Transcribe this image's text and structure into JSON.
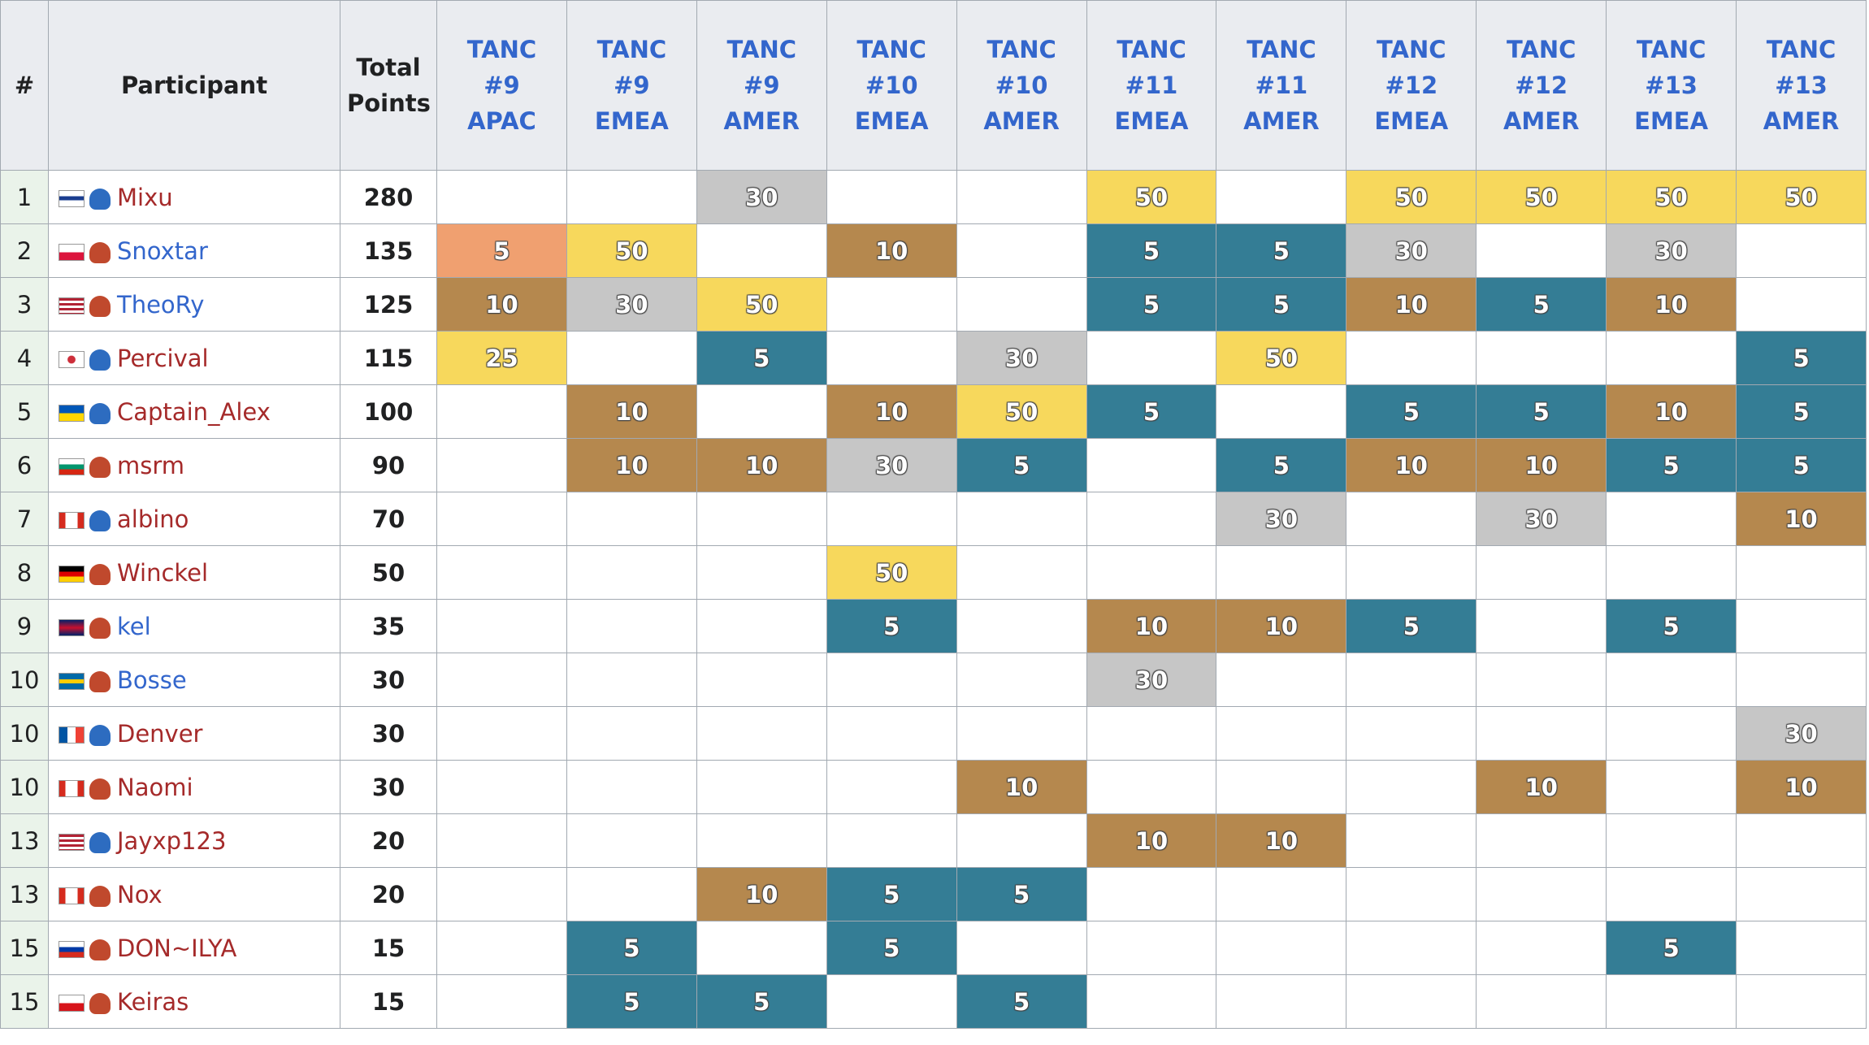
{
  "table": {
    "headers": [
      "#",
      "Participant",
      "Total Points"
    ],
    "events": [
      "TANC #9 APAC",
      "TANC #9 EMEA",
      "TANC #9 AMER",
      "TANC #10 EMEA",
      "TANC #10 AMER",
      "TANC #11 EMEA",
      "TANC #11 AMER",
      "TANC #12 EMEA",
      "TANC #12 AMER",
      "TANC #13 EMEA",
      "TANC #13 AMER"
    ],
    "rows": [
      {
        "rank": 1,
        "name": "Mixu",
        "name_color": "#a52a2a",
        "total": 280,
        "points": [
          null,
          null,
          30,
          null,
          null,
          50,
          null,
          50,
          50,
          50,
          50
        ],
        "colors": [
          null,
          null,
          "#c6c6c6",
          null,
          null,
          "#f7d85c",
          null,
          "#f7d85c",
          "#f7d85c",
          "#f7d85c",
          "#f7d85c"
        ]
      },
      {
        "rank": 2,
        "name": "Snoxtar",
        "name_color": "#3366cc",
        "total": 135,
        "points": [
          5,
          50,
          null,
          10,
          null,
          5,
          5,
          30,
          null,
          30,
          null
        ],
        "colors": [
          "#f0a070",
          "#f7d85c",
          null,
          "#b5884e",
          null,
          "#347d95",
          "#347d95",
          "#c6c6c6",
          null,
          "#c6c6c6",
          null
        ]
      },
      {
        "rank": 3,
        "name": "TheoRy",
        "name_color": "#3366cc",
        "total": 125,
        "points": [
          10,
          30,
          50,
          null,
          null,
          5,
          5,
          10,
          5,
          10,
          null
        ],
        "colors": [
          "#b5884e",
          "#c6c6c6",
          "#f7d85c",
          null,
          null,
          "#347d95",
          "#347d95",
          "#b5884e",
          "#347d95",
          "#b5884e",
          null
        ]
      },
      {
        "rank": 4,
        "name": "Percival",
        "name_color": "#a52a2a",
        "total": 115,
        "points": [
          25,
          null,
          5,
          null,
          30,
          null,
          50,
          null,
          null,
          null,
          5
        ],
        "colors": [
          "#f7d85c",
          null,
          "#347d95",
          null,
          "#c6c6c6",
          null,
          "#f7d85c",
          null,
          null,
          null,
          "#347d95"
        ]
      },
      {
        "rank": 5,
        "name": "Captain_Alex",
        "name_color": "#a52a2a",
        "total": 100,
        "points": [
          null,
          10,
          null,
          10,
          50,
          5,
          null,
          5,
          5,
          10,
          5
        ],
        "colors": [
          null,
          "#b5884e",
          null,
          "#b5884e",
          "#f7d85c",
          "#347d95",
          null,
          "#347d95",
          "#347d95",
          "#b5884e",
          "#347d95"
        ]
      },
      {
        "rank": 6,
        "name": "msrm",
        "name_color": "#a52a2a",
        "total": 90,
        "points": [
          null,
          10,
          10,
          30,
          5,
          null,
          5,
          10,
          10,
          5,
          5
        ],
        "colors": [
          null,
          "#b5884e",
          "#b5884e",
          "#c6c6c6",
          "#347d95",
          null,
          "#347d95",
          "#b5884e",
          "#b5884e",
          "#347d95",
          "#347d95"
        ]
      },
      {
        "rank": 7,
        "name": "albino",
        "name_color": "#a52a2a",
        "total": 70,
        "points": [
          null,
          null,
          null,
          null,
          null,
          null,
          30,
          null,
          30,
          null,
          10
        ],
        "colors": [
          null,
          null,
          null,
          null,
          null,
          null,
          "#c6c6c6",
          null,
          "#c6c6c6",
          null,
          "#b5884e"
        ]
      },
      {
        "rank": 8,
        "name": "Winckel",
        "name_color": "#a52a2a",
        "total": 50,
        "points": [
          null,
          null,
          null,
          50,
          null,
          null,
          null,
          null,
          null,
          null,
          null
        ],
        "colors": [
          null,
          null,
          null,
          "#f7d85c",
          null,
          null,
          null,
          null,
          null,
          null,
          null
        ]
      },
      {
        "rank": 9,
        "name": "kel",
        "name_color": "#3366cc",
        "total": 35,
        "points": [
          null,
          null,
          null,
          5,
          null,
          10,
          10,
          5,
          null,
          5,
          null
        ],
        "colors": [
          null,
          null,
          null,
          "#347d95",
          null,
          "#b5884e",
          "#b5884e",
          "#347d95",
          null,
          "#347d95",
          null
        ]
      },
      {
        "rank": 10,
        "name": "Bosse",
        "name_color": "#3366cc",
        "total": 30,
        "points": [
          null,
          null,
          null,
          null,
          null,
          30,
          null,
          null,
          null,
          null,
          null
        ],
        "colors": [
          null,
          null,
          null,
          null,
          null,
          "#c6c6c6",
          null,
          null,
          null,
          null,
          null
        ]
      },
      {
        "rank": 10,
        "name": "Denver",
        "name_color": "#a52a2a",
        "total": 30,
        "points": [
          null,
          null,
          null,
          null,
          null,
          null,
          null,
          null,
          null,
          null,
          30
        ],
        "colors": [
          null,
          null,
          null,
          null,
          null,
          null,
          null,
          null,
          null,
          null,
          "#c6c6c6"
        ]
      },
      {
        "rank": 10,
        "name": "Naomi",
        "name_color": "#a52a2a",
        "total": 30,
        "points": [
          null,
          null,
          null,
          null,
          10,
          null,
          null,
          null,
          10,
          null,
          10
        ],
        "colors": [
          null,
          null,
          null,
          null,
          "#b5884e",
          null,
          null,
          null,
          "#b5884e",
          null,
          "#b5884e"
        ]
      },
      {
        "rank": 13,
        "name": "Jayxp123",
        "name_color": "#a52a2a",
        "total": 20,
        "points": [
          null,
          null,
          null,
          null,
          null,
          10,
          10,
          null,
          null,
          null,
          null
        ],
        "colors": [
          null,
          null,
          null,
          null,
          null,
          "#b5884e",
          "#b5884e",
          null,
          null,
          null,
          null
        ]
      },
      {
        "rank": 13,
        "name": "Nox",
        "name_color": "#a52a2a",
        "total": 20,
        "points": [
          null,
          null,
          10,
          5,
          5,
          null,
          null,
          null,
          null,
          null,
          null
        ],
        "colors": [
          null,
          null,
          "#b5884e",
          "#347d95",
          "#347d95",
          null,
          null,
          null,
          null,
          null,
          null
        ]
      },
      {
        "rank": 15,
        "name": "DON~ILYA",
        "name_color": "#a52a2a",
        "total": 15,
        "points": [
          null,
          5,
          null,
          5,
          null,
          null,
          null,
          null,
          null,
          5,
          null
        ],
        "colors": [
          null,
          "#347d95",
          null,
          "#347d95",
          null,
          null,
          null,
          null,
          null,
          "#347d95",
          null
        ]
      },
      {
        "rank": 15,
        "name": "Keiras",
        "name_color": "#a52a2a",
        "total": 15,
        "points": [
          null,
          5,
          5,
          null,
          5,
          null,
          null,
          null,
          null,
          null,
          null
        ],
        "colors": [
          null,
          "#347d95",
          "#347d95",
          null,
          "#347d95",
          null,
          null,
          null,
          null,
          null,
          null
        ]
      }
    ]
  }
}
